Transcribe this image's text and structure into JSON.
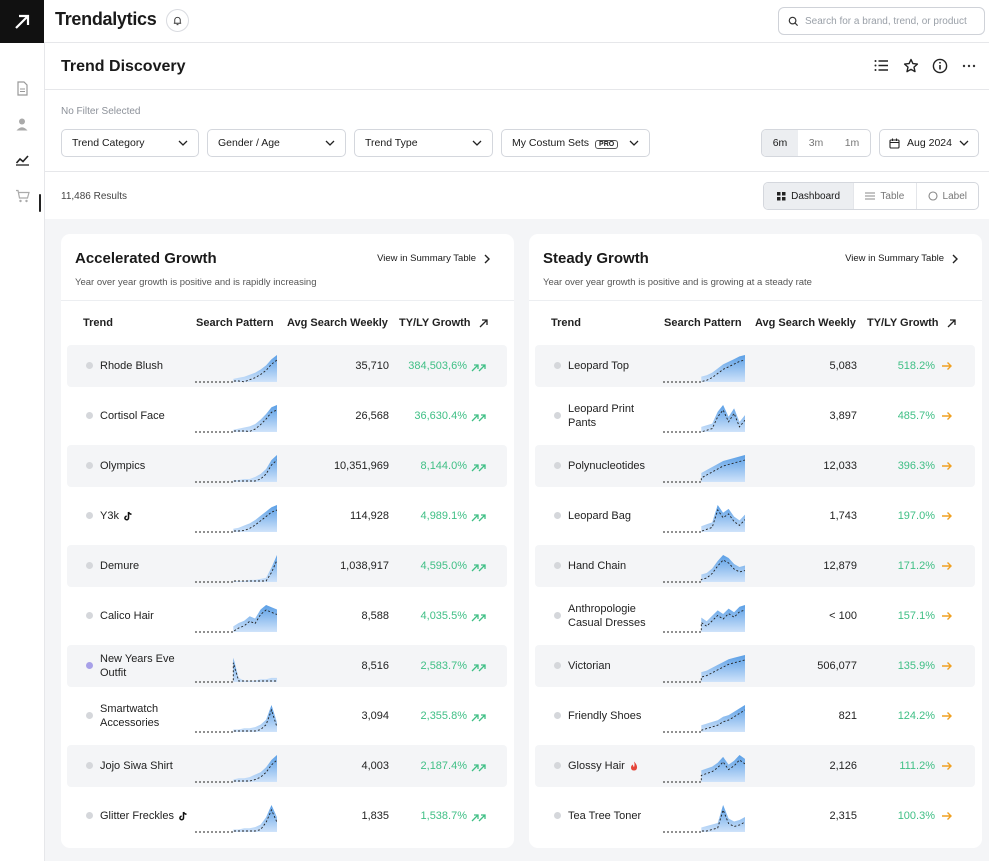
{
  "app": {
    "brand": "Trendalytics",
    "search_placeholder": "Search for a brand, trend, or product"
  },
  "page": {
    "title": "Trend Discovery"
  },
  "filters": {
    "no_filter": "No Filter Selected",
    "dropdowns": [
      "Trend Category",
      "Gender / Age",
      "Trend Type",
      "My Costum Sets"
    ],
    "pro_badge": "PRO",
    "ranges": [
      "6m",
      "3m",
      "1m"
    ],
    "selected_range": "6m",
    "date": "Aug 2024"
  },
  "results": {
    "count_label": "11,486 Results",
    "views": [
      "Dashboard",
      "Table",
      "Label"
    ],
    "selected_view": "Dashboard"
  },
  "colors": {
    "green": "#3fbf85",
    "orange": "#f0a020",
    "spark": "#7fb4ea"
  },
  "cards": [
    {
      "title": "Accelerated Growth",
      "subtitle": "Year over year growth is positive and is rapidly increasing",
      "link": "View in Summary Table",
      "columns": [
        "Trend",
        "Search Pattern",
        "Avg Search Weekly",
        "TY/LY Growth"
      ],
      "arrow": "double-up-right",
      "rows": [
        {
          "name": "Rhode Blush",
          "value": "35,710",
          "growth": "384,503,6%",
          "icon": "",
          "spark": [
            1,
            1,
            1,
            1,
            2,
            2,
            3,
            3,
            4,
            5,
            7,
            9,
            12,
            16,
            22,
            26
          ]
        },
        {
          "name": "Cortisol Face",
          "value": "26,568",
          "growth": "36,630.4%",
          "icon": "",
          "spark": [
            1,
            1,
            1,
            1,
            1,
            2,
            2,
            2,
            3,
            4,
            5,
            7,
            11,
            16,
            22,
            24
          ]
        },
        {
          "name": "Olympics",
          "value": "10,351,969",
          "growth": "8,144.0%",
          "icon": "",
          "spark": [
            1,
            1,
            1,
            1,
            1,
            2,
            2,
            2,
            2,
            3,
            3,
            5,
            8,
            13,
            22,
            27
          ]
        },
        {
          "name": "Y3k",
          "value": "114,928",
          "growth": "4,989.1%",
          "icon": "tiktok",
          "spark": [
            1,
            1,
            1,
            1,
            2,
            2,
            3,
            3,
            4,
            6,
            8,
            11,
            15,
            19,
            23,
            25
          ]
        },
        {
          "name": "Demure",
          "value": "1,038,917",
          "growth": "4,595.0%",
          "icon": "",
          "spark": [
            1,
            1,
            1,
            1,
            1,
            1,
            1,
            1,
            1,
            1,
            2,
            2,
            3,
            4,
            14,
            26
          ]
        },
        {
          "name": "Calico Hair",
          "value": "8,588",
          "growth": "4,035.5%",
          "icon": "",
          "spark": [
            1,
            1,
            1,
            1,
            2,
            2,
            3,
            5,
            8,
            10,
            14,
            12,
            20,
            24,
            22,
            20
          ]
        },
        {
          "name": "New Years Eve Outfit",
          "value": "8,516",
          "growth": "2,583.7%",
          "icon": "",
          "dot_color": "#a7a0e8",
          "spark": [
            1,
            2,
            20,
            3,
            1,
            1,
            2,
            18,
            3,
            1,
            1,
            1,
            2,
            2,
            3,
            3
          ]
        },
        {
          "name": "Smartwatch Accessories",
          "value": "3,094",
          "growth": "2,355.8%",
          "icon": "",
          "spark": [
            1,
            1,
            1,
            1,
            1,
            2,
            2,
            2,
            2,
            3,
            3,
            4,
            6,
            10,
            22,
            8
          ]
        },
        {
          "name": "Jojo Siwa Shirt",
          "value": "4,003",
          "growth": "2,187.4%",
          "icon": "",
          "spark": [
            1,
            1,
            1,
            1,
            1,
            2,
            2,
            2,
            3,
            3,
            4,
            6,
            8,
            12,
            18,
            22
          ]
        },
        {
          "name": "Glitter Freckles",
          "value": "1,835",
          "growth": "1,538.7%",
          "icon": "tiktok",
          "spark": [
            1,
            1,
            1,
            1,
            1,
            2,
            2,
            2,
            2,
            3,
            3,
            4,
            6,
            12,
            22,
            12
          ]
        }
      ]
    },
    {
      "title": "Steady Growth",
      "subtitle": "Year over year growth is positive and is growing at a steady rate",
      "link": "View in Summary Table",
      "columns": [
        "Trend",
        "Search Pattern",
        "Avg Search Weekly",
        "TY/LY Growth"
      ],
      "arrow": "right",
      "rows": [
        {
          "name": "Leopard Top",
          "value": "5,083",
          "growth": "518.2%",
          "icon": "",
          "spark": [
            1,
            1,
            1,
            1,
            2,
            2,
            3,
            4,
            5,
            7,
            10,
            13,
            15,
            17,
            19,
            20
          ]
        },
        {
          "name": "Leopard Print Pants",
          "value": "3,897",
          "growth": "485.7%",
          "icon": "",
          "spark": [
            1,
            1,
            1,
            1,
            1,
            2,
            2,
            3,
            4,
            5,
            12,
            16,
            9,
            14,
            6,
            10
          ]
        },
        {
          "name": "Polynucleotides",
          "value": "12,033",
          "growth": "396.3%",
          "icon": "",
          "spark": [
            2,
            2,
            2,
            3,
            3,
            4,
            5,
            6,
            8,
            10,
            12,
            14,
            15,
            16,
            17,
            18
          ]
        },
        {
          "name": "Leopard Bag",
          "value": "1,743",
          "growth": "197.0%",
          "icon": "",
          "spark": [
            1,
            1,
            1,
            1,
            1,
            2,
            2,
            3,
            4,
            5,
            14,
            10,
            12,
            8,
            6,
            9
          ]
        },
        {
          "name": "Hand Chain",
          "value": "12,879",
          "growth": "171.2%",
          "icon": "",
          "spark": [
            2,
            2,
            2,
            2,
            3,
            3,
            4,
            5,
            6,
            9,
            14,
            18,
            16,
            12,
            10,
            11
          ]
        },
        {
          "name": "Anthropologie Casual Dresses",
          "value": "< 100",
          "growth": "157.1%",
          "icon": "",
          "spark": [
            3,
            4,
            3,
            5,
            6,
            4,
            7,
            8,
            6,
            9,
            12,
            10,
            13,
            11,
            14,
            15
          ]
        },
        {
          "name": "Victorian",
          "value": "506,077",
          "growth": "135.9%",
          "icon": "",
          "spark": [
            3,
            3,
            3,
            4,
            4,
            5,
            6,
            7,
            8,
            10,
            12,
            14,
            16,
            17,
            18,
            19
          ]
        },
        {
          "name": "Friendly Shoes",
          "value": "821",
          "growth": "124.2%",
          "icon": "",
          "spark": [
            2,
            2,
            2,
            3,
            3,
            3,
            4,
            4,
            5,
            6,
            7,
            9,
            10,
            12,
            14,
            16
          ]
        },
        {
          "name": "Glossy Hair",
          "value": "2,126",
          "growth": "111.2%",
          "icon": "fire",
          "spark": [
            2,
            2,
            3,
            3,
            4,
            5,
            4,
            6,
            7,
            8,
            10,
            13,
            9,
            11,
            14,
            12
          ]
        },
        {
          "name": "Tea Tree Toner",
          "value": "2,315",
          "growth": "100.3%",
          "icon": "",
          "spark": [
            2,
            2,
            2,
            2,
            2,
            3,
            3,
            3,
            4,
            5,
            6,
            18,
            9,
            7,
            8,
            10
          ]
        }
      ]
    }
  ]
}
